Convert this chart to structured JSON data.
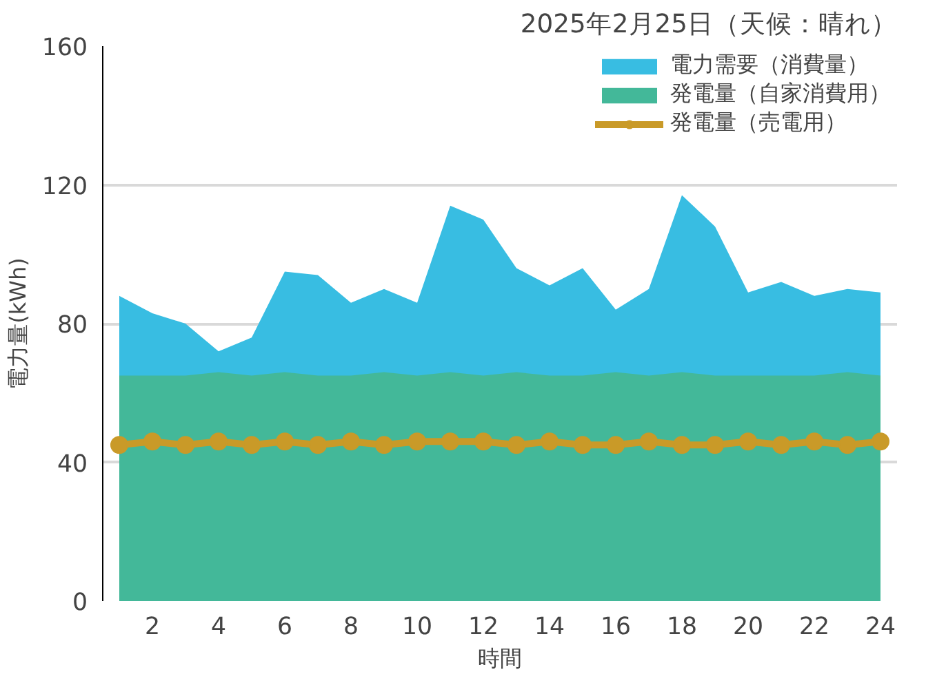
{
  "chart_data": {
    "type": "area",
    "title": "2025年2月25日（天候：晴れ）",
    "xlabel": "時間",
    "ylabel": "電力量(kWh)",
    "x": [
      1,
      2,
      3,
      4,
      5,
      6,
      7,
      8,
      9,
      10,
      11,
      12,
      13,
      14,
      15,
      16,
      17,
      18,
      19,
      20,
      21,
      22,
      23,
      24
    ],
    "series": [
      {
        "name": "電力需要（消費量）",
        "color": "#38bde2",
        "values": [
          88,
          83,
          80,
          72,
          76,
          95,
          94,
          86,
          90,
          86,
          114,
          110,
          96,
          91,
          96,
          84,
          90,
          117,
          108,
          89,
          92,
          88,
          90,
          89
        ]
      },
      {
        "name": "発電量（自家消費用）",
        "color": "#43b899",
        "values": [
          65,
          65,
          65,
          66,
          65,
          66,
          65,
          65,
          66,
          65,
          66,
          65,
          66,
          65,
          65,
          66,
          65,
          66,
          65,
          65,
          65,
          65,
          66,
          65
        ]
      },
      {
        "name": "発電量（売電用）",
        "color": "#c99a28",
        "type": "line",
        "marker": "circle",
        "values": [
          45,
          46,
          45,
          46,
          45,
          46,
          45,
          46,
          45,
          46,
          46,
          46,
          45,
          46,
          45,
          45,
          46,
          45,
          45,
          46,
          45,
          46,
          45,
          46
        ]
      }
    ],
    "xlim": [
      0.5,
      24.5
    ],
    "ylim": [
      0,
      160
    ],
    "xticks": [
      2,
      4,
      6,
      8,
      10,
      12,
      14,
      16,
      18,
      20,
      22,
      24
    ],
    "yticks": [
      0,
      40,
      80,
      120,
      160
    ],
    "grid": "y",
    "legend": "top right"
  }
}
